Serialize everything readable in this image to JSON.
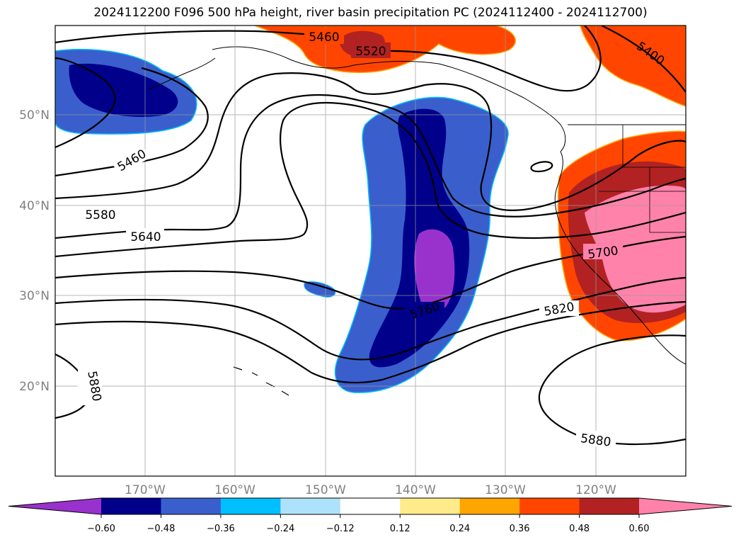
{
  "title": "2024112200 F096 500 hPa height, river basin precipitation PC (2024112400 - 2024112700)",
  "lat_labels": [
    "50°N",
    "40°N",
    "30°N",
    "20°N"
  ],
  "lon_labels": [
    "170°W",
    "160°W",
    "150°W",
    "140°W",
    "130°W",
    "120°W"
  ],
  "colorbar": {
    "colors": [
      "#9932CC",
      "#00008B",
      "#3A5FCD",
      "#00BFFF",
      "#ADE2FA",
      "#FFFFFF",
      "#FFEB8A",
      "#FFA500",
      "#FF4500",
      "#B22222",
      "#FF82AB"
    ],
    "tick_labels": [
      "−0.60",
      "−0.48",
      "−0.36",
      "−0.24",
      "−0.12",
      "0.12",
      "0.24",
      "0.36",
      "0.48",
      "0.60"
    ]
  },
  "contour_labels": [
    "5460",
    "5520",
    "5400",
    "5460",
    "5580",
    "5640",
    "5700",
    "5760",
    "5820",
    "5880",
    "5880"
  ]
}
